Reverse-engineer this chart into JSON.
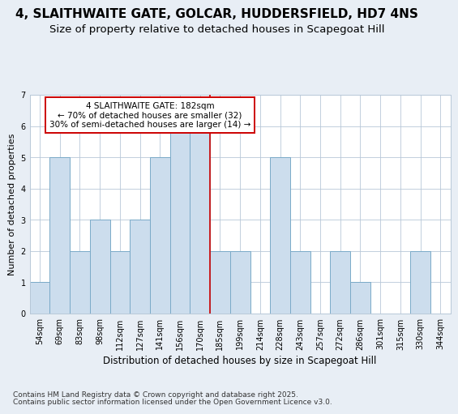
{
  "title1": "4, SLAITHWAITE GATE, GOLCAR, HUDDERSFIELD, HD7 4NS",
  "title2": "Size of property relative to detached houses in Scapegoat Hill",
  "xlabel": "Distribution of detached houses by size in Scapegoat Hill",
  "ylabel": "Number of detached properties",
  "footer1": "Contains HM Land Registry data © Crown copyright and database right 2025.",
  "footer2": "Contains public sector information licensed under the Open Government Licence v3.0.",
  "bins": [
    "54sqm",
    "69sqm",
    "83sqm",
    "98sqm",
    "112sqm",
    "127sqm",
    "141sqm",
    "156sqm",
    "170sqm",
    "185sqm",
    "199sqm",
    "214sqm",
    "228sqm",
    "243sqm",
    "257sqm",
    "272sqm",
    "286sqm",
    "301sqm",
    "315sqm",
    "330sqm",
    "344sqm"
  ],
  "values": [
    1,
    5,
    2,
    3,
    2,
    3,
    5,
    6,
    6,
    2,
    2,
    0,
    5,
    2,
    0,
    2,
    1,
    0,
    0,
    2,
    0
  ],
  "bar_color": "#ccdded",
  "bar_edge_color": "#7aaac8",
  "annotation_text": "4 SLAITHWAITE GATE: 182sqm\n← 70% of detached houses are smaller (32)\n30% of semi-detached houses are larger (14) →",
  "annotation_box_color": "#ffffff",
  "annotation_box_edge": "#cc0000",
  "vline_color": "#cc0000",
  "ylim": [
    0,
    7
  ],
  "yticks": [
    0,
    1,
    2,
    3,
    4,
    5,
    6,
    7
  ],
  "bg_color": "#e8eef5",
  "plot_bg_color": "#ffffff",
  "grid_color": "#b8c8d8",
  "title1_fontsize": 11,
  "title2_fontsize": 9.5,
  "xlabel_fontsize": 8.5,
  "ylabel_fontsize": 8,
  "tick_fontsize": 7,
  "annot_fontsize": 7.5,
  "footer_fontsize": 6.5
}
